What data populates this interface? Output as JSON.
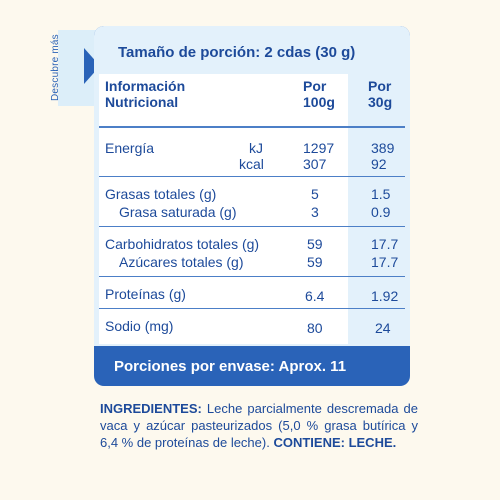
{
  "side_label": "Descubre más",
  "serving_size": "Tamaño de porción: 2 cdas (30 g)",
  "header": {
    "label_line1": "Información",
    "label_line2": "Nutricional",
    "col1_line1": "Por",
    "col1_line2": "100g",
    "col2_line1": "Por",
    "col2_line2": "30g"
  },
  "rows": {
    "energy": {
      "label": "Energía",
      "unit_kj": "kJ",
      "unit_kcal": "kcal",
      "kj_100": "1297",
      "kcal_100": "307",
      "kj_30": "389",
      "kcal_30": "92"
    },
    "fat": {
      "label": "Grasas totales (g)",
      "v100": "5",
      "v30": "1.5"
    },
    "sat_fat": {
      "label": "Grasa saturada (g)",
      "v100": "3",
      "v30": "0.9"
    },
    "carbs": {
      "label": "Carbohidratos totales (g)",
      "v100": "59",
      "v30": "17.7"
    },
    "sugars": {
      "label": "Azúcares totales (g)",
      "v100": "59",
      "v30": "17.7"
    },
    "protein": {
      "label": "Proteínas (g)",
      "v100": "6.4",
      "v30": "1.92"
    },
    "sodium": {
      "label": "Sodio (mg)",
      "v100": "80",
      "v30": "24"
    }
  },
  "servings_per_container": "Porciones por envase: Aprox. 11",
  "ingredients": {
    "heading": "INGREDIENTES:",
    "text": " Leche parcialmente descremada de vaca y azúcar pasteurizados (5,0 % grasa butírica y 6,4 % de proteínas de leche).",
    "contains": " CONTIENE: LECHE."
  },
  "colors": {
    "primary": "#2a63b8",
    "light": "#e3f1fb",
    "text": "#1d4a9a",
    "background": "#fdf9ee"
  }
}
